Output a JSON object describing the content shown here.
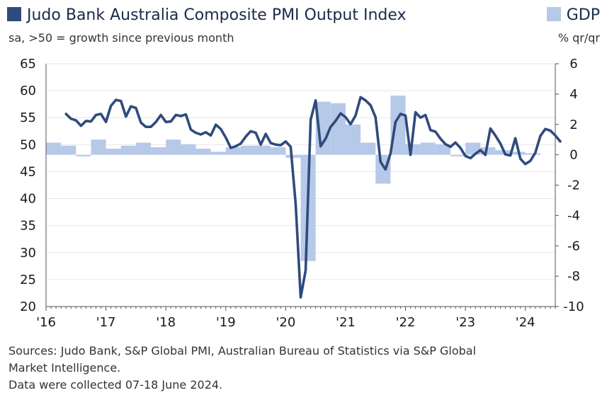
{
  "header": {
    "title": "Judo Bank Australia Composite PMI Output Index",
    "subtitle": "sa, >50 = growth since previous month",
    "gdp_label": "GDP",
    "gdp_unit": "% qr/qr"
  },
  "footer": {
    "line1": "Sources: Judo Bank, S&P Global PMI, Australian Bureau of Statistics via S&P Global",
    "line2": "Market Intelligence.",
    "line3": "Data were collected 07-18 June 2024."
  },
  "colors": {
    "pmi_line": "#2f4b7c",
    "gdp_bars": "#b7c9e8",
    "grid": "#e6e6e6",
    "axis": "#555555"
  },
  "chart_data": {
    "type": "line",
    "xlim": [
      "2016-01",
      "2024-07"
    ],
    "x_tick_labels": [
      "'16",
      "'17",
      "'18",
      "'19",
      "'20",
      "'21",
      "'22",
      "'23",
      "'24"
    ],
    "y_left": {
      "lim": [
        20,
        65
      ],
      "ticks": [
        20,
        25,
        30,
        35,
        40,
        45,
        50,
        55,
        60,
        65
      ]
    },
    "y_right": {
      "lim": [
        -10,
        6
      ],
      "ticks": [
        -10,
        -8,
        -6,
        -4,
        -2,
        0,
        2,
        4,
        6
      ]
    },
    "grid": "horizontal",
    "series": [
      {
        "name": "Judo Bank Australia Composite PMI Output Index",
        "axis": "left",
        "kind": "line",
        "start": "2016-05",
        "values": [
          55.7,
          54.8,
          54.5,
          53.5,
          54.4,
          54.3,
          55.5,
          55.7,
          54.2,
          57.2,
          58.3,
          58.1,
          55.2,
          57.1,
          56.8,
          54.1,
          53.3,
          53.3,
          54.2,
          55.5,
          54.2,
          54.3,
          55.5,
          55.3,
          55.6,
          52.8,
          52.2,
          51.9,
          52.3,
          51.7,
          53.7,
          52.9,
          51.3,
          49.4,
          49.7,
          50.2,
          51.5,
          52.5,
          52.2,
          50.0,
          52.0,
          50.3,
          50.0,
          49.9,
          50.6,
          49.6,
          38.9,
          21.7,
          26.7,
          54.6,
          58.2,
          49.7,
          51.1,
          53.3,
          54.4,
          55.8,
          55.1,
          53.8,
          55.4,
          58.8,
          58.2,
          57.3,
          55.1,
          46.8,
          45.4,
          48.4,
          54.2,
          55.7,
          55.4,
          48.1,
          56.0,
          55.0,
          55.5,
          52.7,
          52.4,
          51.1,
          50.1,
          49.6,
          50.4,
          49.4,
          47.9,
          47.5,
          48.3,
          49.0,
          48.1,
          53.0,
          51.7,
          50.2,
          48.2,
          48.0,
          51.2,
          47.4,
          46.4,
          47.0,
          48.5,
          51.6,
          52.9,
          52.6,
          51.7,
          50.6
        ]
      },
      {
        "name": "GDP",
        "axis": "right",
        "kind": "bar",
        "quarters": [
          "2016-Q1",
          "2016-Q2",
          "2016-Q3",
          "2016-Q4",
          "2017-Q1",
          "2017-Q2",
          "2017-Q3",
          "2017-Q4",
          "2018-Q1",
          "2018-Q2",
          "2018-Q3",
          "2018-Q4",
          "2019-Q1",
          "2019-Q2",
          "2019-Q3",
          "2019-Q4",
          "2020-Q1",
          "2020-Q2",
          "2020-Q3",
          "2020-Q4",
          "2021-Q1",
          "2021-Q2",
          "2021-Q3",
          "2021-Q4",
          "2022-Q1",
          "2022-Q2",
          "2022-Q3",
          "2022-Q4",
          "2023-Q1",
          "2023-Q2",
          "2023-Q3",
          "2023-Q4",
          "2024-Q1"
        ],
        "values": [
          0.8,
          0.6,
          -0.1,
          1.0,
          0.4,
          0.6,
          0.8,
          0.5,
          1.0,
          0.7,
          0.4,
          0.2,
          0.5,
          0.6,
          0.6,
          0.5,
          -0.2,
          -7.0,
          3.5,
          3.4,
          2.0,
          0.8,
          -1.9,
          3.9,
          0.7,
          0.8,
          0.7,
          -0.1,
          0.8,
          0.5,
          0.3,
          0.2,
          0.1
        ]
      }
    ]
  }
}
